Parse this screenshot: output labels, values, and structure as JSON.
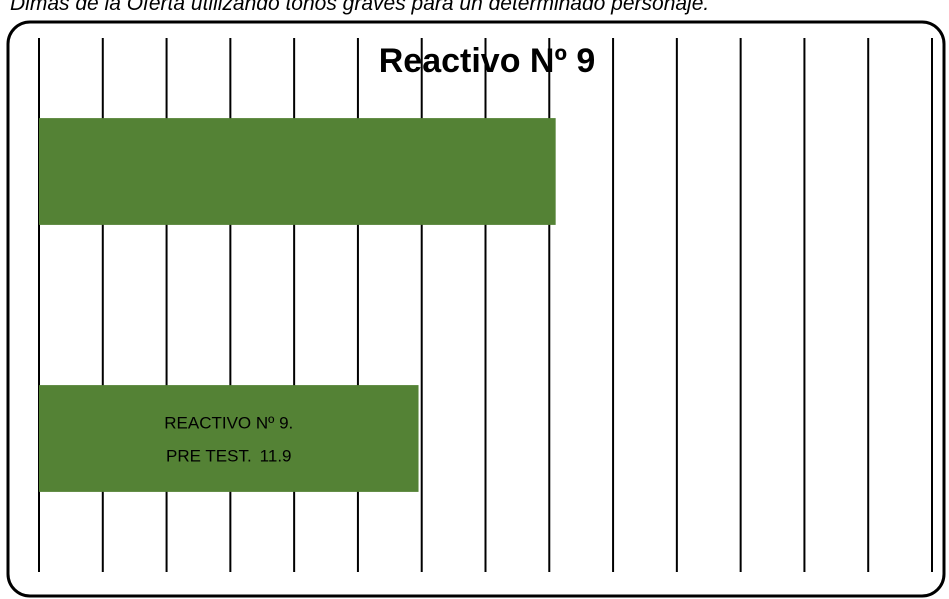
{
  "chart_data": {
    "type": "barh",
    "caption": "Dimas de la Oferta utilizando tonos graves para un determinado personaje.",
    "title": "Reactivo Nº 9",
    "category_label": "REACTIVO Nº 9.",
    "values": [
      16.2,
      11.9
    ],
    "series_labels": [
      null,
      "PRE TEST."
    ],
    "color": "#548235",
    "xlim": [
      0,
      28
    ],
    "xticks": [
      0,
      2,
      4,
      6,
      8,
      10,
      12,
      14,
      16,
      18,
      20,
      22,
      24,
      26,
      28
    ],
    "grid": true
  }
}
